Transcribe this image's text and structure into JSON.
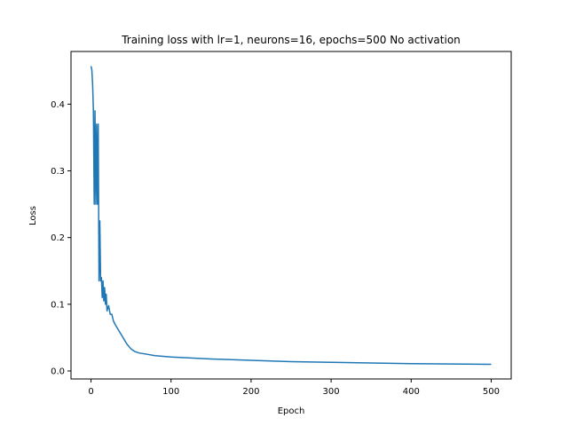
{
  "chart_data": {
    "type": "line",
    "title": "Training loss with lr=1, neurons=16, epochs=500 No activation",
    "xlabel": "Epoch",
    "ylabel": "Loss",
    "xlim": [
      -25,
      525
    ],
    "ylim": [
      -0.012,
      0.479
    ],
    "xticks": [
      0,
      100,
      200,
      300,
      400,
      500
    ],
    "yticks": [
      0.0,
      0.1,
      0.2,
      0.3,
      0.4
    ],
    "xtick_labels": [
      "0",
      "100",
      "200",
      "300",
      "400",
      "500"
    ],
    "ytick_labels": [
      "0.0",
      "0.1",
      "0.2",
      "0.3",
      "0.4"
    ],
    "grid": false,
    "legend": "none",
    "series": [
      {
        "color": "#1f77b4",
        "x": [
          0,
          1,
          2,
          3,
          4,
          5,
          6,
          7,
          8,
          9,
          10,
          11,
          12,
          13,
          14,
          15,
          16,
          17,
          18,
          19,
          20,
          22,
          24,
          26,
          28,
          30,
          35,
          40,
          45,
          50,
          55,
          60,
          70,
          80,
          100,
          150,
          200,
          250,
          300,
          350,
          400,
          450,
          500
        ],
        "y": [
          0.457,
          0.452,
          0.43,
          0.39,
          0.25,
          0.39,
          0.25,
          0.37,
          0.25,
          0.37,
          0.135,
          0.225,
          0.135,
          0.14,
          0.11,
          0.135,
          0.105,
          0.125,
          0.1,
          0.115,
          0.09,
          0.098,
          0.085,
          0.085,
          0.075,
          0.07,
          0.06,
          0.05,
          0.04,
          0.033,
          0.029,
          0.027,
          0.025,
          0.023,
          0.021,
          0.018,
          0.016,
          0.014,
          0.013,
          0.012,
          0.011,
          0.0105,
          0.01
        ]
      }
    ]
  }
}
